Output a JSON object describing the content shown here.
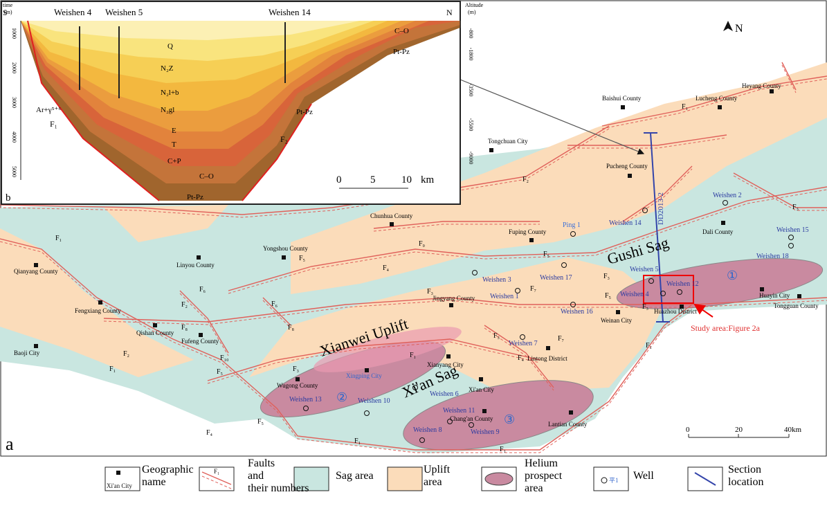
{
  "inset": {
    "panel_label": "b",
    "directions": [
      "S",
      "N"
    ],
    "wells": [
      "Weishen 4",
      "Weishen 5",
      "Weishen 14"
    ],
    "left_axis_title": [
      "time",
      "(m)"
    ],
    "right_axis_title": [
      "Altitude",
      "(m)"
    ],
    "left_ticks": [
      "1000",
      "2000",
      "3000",
      "4000",
      "5000"
    ],
    "right_ticks": [
      "-800",
      "-1800",
      "-3500",
      "-5500",
      "-9000"
    ],
    "strata": [
      "Q",
      "N₂Z",
      "N₂l+b",
      "N₂gl",
      "E",
      "T",
      "C+P",
      "C–O",
      "Pt-Pz",
      "C–O",
      "Pt-Pz",
      "Pt-Pz"
    ],
    "others": [
      "Ar+γ⁵⁺⁶",
      "F₁",
      "F₂"
    ],
    "scale": [
      "0",
      "5",
      "10",
      "km"
    ]
  },
  "map": {
    "panel_label": "a",
    "north": "N",
    "places": [
      "Baishui County",
      "Lucheng County",
      "Heyang County",
      "Tongchuan City",
      "Pucheng County",
      "Chunhua County",
      "Fuping County",
      "Dali County",
      "Yongshou County",
      "Linyou County",
      "Qianyang County",
      "Fengxiang County",
      "Qishan County",
      "Fufeng County",
      "Jingyang County",
      "Weinan City",
      "Huazhou District",
      "Huayin City",
      "Tongguan County",
      "Baoji City",
      "Xianyang City",
      "Xingping City",
      "Wugong County",
      "Xi'an City",
      "Lintong District",
      "Chang'an County",
      "Lantian County"
    ],
    "wells": [
      "Ping 1",
      "Weishen 2",
      "Weishen 14",
      "Weishen 15",
      "Weishen 18",
      "Weishen 3",
      "Weishen 17",
      "Weishen 5",
      "Weishen 4",
      "Weishen 12",
      "Weishen 1",
      "Weishen 16",
      "Weishen 7",
      "Weishen 13",
      "Weishen 10",
      "Weishen 6",
      "Weishen 11",
      "Weishen 8",
      "Weishen 9"
    ],
    "regions": [
      "Gushi Sag",
      "Xianwei Uplift",
      "Xi'an Sag"
    ],
    "prospects": [
      "①",
      "②",
      "③"
    ],
    "faults": [
      "F₁",
      "F₂",
      "F₃",
      "F₀",
      "F₅",
      "F₄",
      "F₃",
      "F₇",
      "F₃",
      "F₅",
      "F₆",
      "F₂",
      "F₁",
      "F₆",
      "F₈",
      "F₈",
      "F₃",
      "F₇",
      "F₁",
      "F₄",
      "F₃",
      "F₂",
      "F₁",
      "F₅",
      "F₁₀",
      "F₅",
      "F₄",
      "F₁",
      "F₁",
      "F₁",
      "F₃",
      "F₅"
    ],
    "section": "DD2013-2",
    "study_area": "Study area:Figure 2a",
    "scale": [
      "0",
      "20",
      "40km"
    ]
  },
  "legend": [
    {
      "label": [
        "Geographic",
        "name"
      ],
      "sample": "Xi'an City"
    },
    {
      "label": [
        "Faults",
        "and",
        "their numbers"
      ],
      "sample": "F₁"
    },
    {
      "label": [
        "Sag area"
      ]
    },
    {
      "label": [
        "Uplift",
        "area"
      ]
    },
    {
      "label": [
        "Helium",
        "prospect",
        "area"
      ]
    },
    {
      "label": [
        "Well"
      ],
      "sample": "平1"
    },
    {
      "label": [
        "Section",
        "location"
      ]
    }
  ]
}
